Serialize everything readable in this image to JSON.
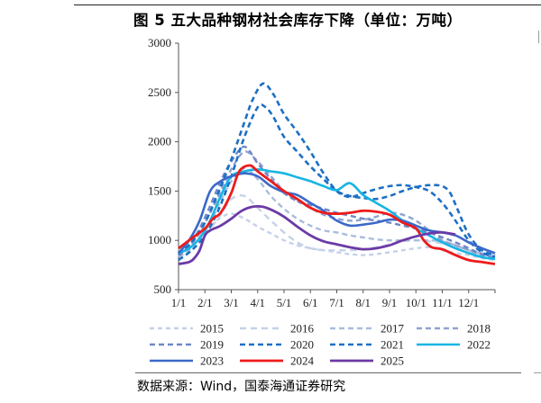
{
  "title": "图 5 五大品种钢材社会库存下降（单位：万吨）",
  "source": "数据来源：Wind，国泰海通证券研究",
  "chart_data": {
    "type": "line",
    "ylim": [
      500,
      3000
    ],
    "yticks": [
      500,
      1000,
      1500,
      2000,
      2500,
      3000
    ],
    "xlim": [
      0,
      12
    ],
    "x_labels": [
      "1/1",
      "2/1",
      "3/1",
      "4/1",
      "5/1",
      "6/1",
      "7/1",
      "8/1",
      "9/1",
      "10/1",
      "11/1",
      "12/1"
    ],
    "legend_position": "bottom",
    "series": [
      {
        "name": "2015",
        "color": "#c5d1e9",
        "dash": "5,4",
        "width": 2.4,
        "x": [
          0,
          0.4,
          0.8,
          1.2,
          1.6,
          2,
          2.5,
          3,
          3.5,
          4,
          4.5,
          5,
          5.5,
          6,
          6.5,
          7,
          7.5,
          8,
          8.5,
          9,
          9.5,
          10,
          10.5,
          11,
          11.5,
          12
        ],
        "y": [
          900,
          960,
          1060,
          1150,
          1230,
          1270,
          1220,
          1140,
          1070,
          1000,
          950,
          920,
          900,
          880,
          860,
          850,
          860,
          880,
          900,
          920,
          930,
          900,
          870,
          850,
          820,
          800
        ]
      },
      {
        "name": "2016",
        "color": "#c5d1e9",
        "dash": "7,5",
        "width": 2.4,
        "x": [
          0,
          0.4,
          0.8,
          1.2,
          1.6,
          2,
          2.5,
          3,
          3.5,
          4,
          4.5,
          5,
          5.5,
          6,
          6.5,
          7,
          7.5,
          8,
          8.5,
          9,
          9.5,
          10,
          10.5,
          11,
          11.5,
          12
        ],
        "y": [
          860,
          920,
          1020,
          1120,
          1260,
          1420,
          1450,
          1330,
          1200,
          1080,
          980,
          920,
          900,
          900,
          900,
          910,
          930,
          960,
          990,
          1000,
          990,
          970,
          930,
          900,
          870,
          850
        ]
      },
      {
        "name": "2017",
        "color": "#aabbdd",
        "dash": "6,4",
        "width": 2.4,
        "x": [
          0,
          0.4,
          0.8,
          1.2,
          1.6,
          2,
          2.5,
          3,
          3.5,
          4,
          4.5,
          5,
          5.5,
          6,
          6.5,
          7,
          7.5,
          8,
          8.5,
          9,
          9.5,
          10,
          10.5,
          11,
          11.5,
          12
        ],
        "y": [
          830,
          900,
          1030,
          1180,
          1400,
          1600,
          1730,
          1620,
          1450,
          1320,
          1220,
          1150,
          1100,
          1080,
          1050,
          1030,
          1010,
          1000,
          1000,
          1000,
          1000,
          990,
          950,
          900,
          860,
          840
        ]
      },
      {
        "name": "2018",
        "color": "#8ea3cf",
        "dash": "6,4",
        "width": 2.4,
        "x": [
          0,
          0.4,
          0.8,
          1.2,
          1.6,
          2,
          2.5,
          3,
          3.5,
          4,
          4.5,
          5,
          5.5,
          6,
          6.5,
          7,
          7.5,
          8,
          8.5,
          9,
          9.5,
          10,
          10.5,
          11,
          11.5,
          12
        ],
        "y": [
          840,
          930,
          1080,
          1280,
          1500,
          1720,
          1900,
          1800,
          1650,
          1500,
          1400,
          1330,
          1260,
          1220,
          1200,
          1210,
          1240,
          1280,
          1260,
          1200,
          1100,
          1000,
          950,
          900,
          850,
          820
        ]
      },
      {
        "name": "2019",
        "color": "#6f87c6",
        "dash": "6,4",
        "width": 2.4,
        "x": [
          0,
          0.4,
          0.8,
          1.2,
          1.6,
          2,
          2.5,
          3,
          3.5,
          4,
          4.5,
          5,
          5.5,
          6,
          6.5,
          7,
          7.5,
          8,
          8.5,
          9,
          9.5,
          10,
          10.5,
          11,
          11.5,
          12
        ],
        "y": [
          850,
          950,
          1120,
          1350,
          1600,
          1800,
          1950,
          1780,
          1620,
          1480,
          1400,
          1360,
          1320,
          1280,
          1250,
          1220,
          1200,
          1180,
          1150,
          1120,
          1080,
          1030,
          980,
          920,
          860,
          820
        ]
      },
      {
        "name": "2020",
        "color": "#1d6fc4",
        "dash": "6,4",
        "width": 2.6,
        "x": [
          0,
          0.5,
          1,
          1.5,
          2,
          2.5,
          2.8,
          3.2,
          3.6,
          4,
          4.5,
          5,
          5.5,
          6,
          6.5,
          7,
          7.5,
          8,
          8.5,
          9,
          9.5,
          10,
          10.5,
          11,
          11.5,
          12
        ],
        "y": [
          860,
          980,
          1180,
          1480,
          1820,
          2200,
          2420,
          2590,
          2480,
          2280,
          2100,
          1900,
          1680,
          1500,
          1440,
          1480,
          1520,
          1550,
          1560,
          1540,
          1500,
          1380,
          1200,
          1000,
          880,
          830
        ]
      },
      {
        "name": "2021",
        "color": "#1d6fc4",
        "dash": "6,4",
        "width": 2.6,
        "x": [
          0,
          0.5,
          1,
          1.5,
          2,
          2.5,
          3,
          3.3,
          3.6,
          4,
          4.5,
          5,
          5.5,
          6,
          6.5,
          7,
          7.5,
          8,
          8.5,
          9,
          9.5,
          10,
          10.3,
          10.6,
          11,
          11.5,
          12
        ],
        "y": [
          800,
          900,
          1050,
          1300,
          1650,
          2050,
          2350,
          2350,
          2250,
          2050,
          1900,
          1750,
          1620,
          1500,
          1450,
          1430,
          1420,
          1450,
          1500,
          1540,
          1560,
          1550,
          1480,
          1300,
          1060,
          900,
          850
        ]
      },
      {
        "name": "2022",
        "color": "#16b5e3",
        "dash": "",
        "width": 2.6,
        "x": [
          0,
          0.4,
          0.8,
          1.2,
          1.6,
          2,
          2.5,
          3,
          3.5,
          4,
          4.5,
          5,
          5.5,
          6,
          6.5,
          7,
          7.5,
          8,
          8.5,
          9,
          9.5,
          10,
          10.5,
          11,
          11.5,
          12
        ],
        "y": [
          870,
          920,
          1020,
          1200,
          1450,
          1650,
          1700,
          1720,
          1700,
          1680,
          1640,
          1600,
          1550,
          1510,
          1580,
          1460,
          1380,
          1300,
          1200,
          1120,
          1050,
          980,
          920,
          870,
          830,
          810
        ]
      },
      {
        "name": "2023",
        "color": "#3b68c9",
        "dash": "",
        "width": 2.6,
        "x": [
          0,
          0.4,
          0.8,
          1.2,
          1.6,
          2,
          2.5,
          3,
          3.5,
          4,
          4.5,
          5,
          5.5,
          6,
          6.5,
          7,
          7.5,
          8,
          8.5,
          9,
          9.5,
          10,
          10.5,
          11,
          11.5,
          12
        ],
        "y": [
          870,
          1000,
          1200,
          1500,
          1600,
          1650,
          1680,
          1650,
          1550,
          1490,
          1460,
          1380,
          1300,
          1200,
          1150,
          1160,
          1180,
          1210,
          1200,
          1150,
          1100,
          1080,
          1050,
          980,
          920,
          870
        ]
      },
      {
        "name": "2024",
        "color": "#ee1b1b",
        "dash": "",
        "width": 2.8,
        "x": [
          0,
          0.5,
          1,
          1.3,
          1.6,
          2,
          2.3,
          2.7,
          3,
          3.5,
          4,
          4.5,
          5,
          5.5,
          6,
          6.5,
          7,
          7.5,
          8,
          8.5,
          9,
          9.3,
          9.6,
          10,
          10.5,
          11,
          11.5,
          12
        ],
        "y": [
          920,
          1020,
          1120,
          1220,
          1280,
          1480,
          1700,
          1760,
          1700,
          1600,
          1500,
          1420,
          1330,
          1280,
          1270,
          1280,
          1300,
          1290,
          1260,
          1180,
          1120,
          1000,
          930,
          910,
          850,
          800,
          780,
          760
        ]
      },
      {
        "name": "2025",
        "color": "#6b3aa6",
        "dash": "",
        "width": 2.8,
        "x": [
          0,
          0.4,
          0.6,
          0.8,
          1,
          1.2,
          1.6,
          2,
          2.4,
          2.8,
          3.2,
          3.6,
          4,
          4.5,
          5,
          5.5,
          6,
          6.5,
          7,
          7.5,
          8,
          8.5,
          9,
          9.5,
          10,
          10.5
        ],
        "y": [
          760,
          780,
          820,
          900,
          1050,
          1100,
          1150,
          1220,
          1300,
          1340,
          1340,
          1300,
          1240,
          1140,
          1050,
          990,
          960,
          930,
          910,
          920,
          950,
          1000,
          1040,
          1070,
          1080,
          1060
        ]
      }
    ]
  }
}
